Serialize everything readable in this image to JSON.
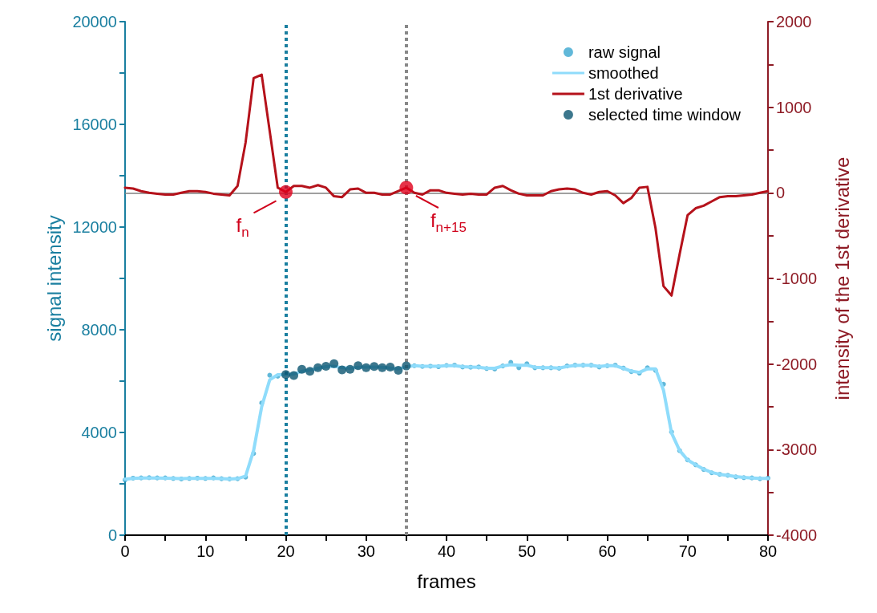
{
  "chart_data": {
    "type": "line",
    "xlabel": "frames",
    "ylabel": "signal intensity",
    "y2label": "intensity of the 1st derivative",
    "x": [
      0,
      1,
      2,
      3,
      4,
      5,
      6,
      7,
      8,
      9,
      10,
      11,
      12,
      13,
      14,
      15,
      16,
      17,
      18,
      19,
      20,
      21,
      22,
      23,
      24,
      25,
      26,
      27,
      28,
      29,
      30,
      31,
      32,
      33,
      34,
      35,
      36,
      37,
      38,
      39,
      40,
      41,
      42,
      43,
      44,
      45,
      46,
      47,
      48,
      49,
      50,
      51,
      52,
      53,
      54,
      55,
      56,
      57,
      58,
      59,
      60,
      61,
      62,
      63,
      64,
      65,
      66,
      67,
      68,
      69,
      70,
      71,
      72,
      73,
      74,
      75,
      76,
      77,
      78,
      79,
      80
    ],
    "series": [
      {
        "name": "raw signal",
        "type": "scatter",
        "marker": "circle",
        "color": "#3aa6d0",
        "values": [
          2150,
          2220,
          2230,
          2240,
          2230,
          2230,
          2210,
          2190,
          2210,
          2220,
          2210,
          2230,
          2200,
          2190,
          2200,
          2260,
          3180,
          5150,
          6230,
          6190,
          null,
          null,
          null,
          null,
          null,
          null,
          null,
          null,
          null,
          null,
          null,
          null,
          null,
          null,
          null,
          null,
          6600,
          6570,
          6580,
          6560,
          6610,
          6620,
          6550,
          6540,
          6550,
          6490,
          6470,
          6590,
          6730,
          6520,
          6680,
          6520,
          6520,
          6520,
          6500,
          6590,
          6620,
          6620,
          6620,
          6550,
          6600,
          6620,
          6510,
          6370,
          6310,
          6520,
          6420,
          5880,
          4020,
          3290,
          2930,
          2740,
          2560,
          2430,
          2370,
          2330,
          2270,
          2240,
          2230,
          2200,
          2220
        ]
      },
      {
        "name": "smoothed",
        "marker": "none",
        "color": "#8fdcfb",
        "values": [
          2180,
          2210,
          2230,
          2230,
          2230,
          2220,
          2210,
          2200,
          2210,
          2210,
          2210,
          2210,
          2200,
          2190,
          2200,
          2300,
          3300,
          5000,
          6050,
          6250,
          6250,
          6280,
          6380,
          6430,
          6500,
          6560,
          6580,
          6520,
          6500,
          6540,
          6550,
          6550,
          6540,
          6510,
          6480,
          6560,
          6600,
          6580,
          6580,
          6580,
          6600,
          6600,
          6560,
          6550,
          6540,
          6500,
          6500,
          6590,
          6640,
          6620,
          6620,
          6540,
          6520,
          6520,
          6510,
          6570,
          6610,
          6620,
          6620,
          6570,
          6600,
          6600,
          6500,
          6390,
          6340,
          6480,
          6480,
          5650,
          3980,
          3300,
          2930,
          2740,
          2570,
          2440,
          2370,
          2330,
          2280,
          2250,
          2230,
          2210,
          2210
        ]
      },
      {
        "name": "1st derivative",
        "marker": "none",
        "axis": "y2",
        "color": "#b5121b",
        "values": [
          60,
          50,
          20,
          0,
          -10,
          -20,
          -20,
          0,
          20,
          20,
          10,
          -10,
          -20,
          -30,
          80,
          590,
          1340,
          1380,
          720,
          60,
          10,
          80,
          80,
          60,
          90,
          60,
          -40,
          -50,
          40,
          50,
          0,
          0,
          -20,
          -20,
          20,
          60,
          0,
          -20,
          30,
          30,
          0,
          -10,
          -20,
          -10,
          -20,
          -20,
          60,
          80,
          30,
          -10,
          -30,
          -30,
          -30,
          20,
          40,
          50,
          40,
          0,
          -20,
          10,
          20,
          -30,
          -120,
          -60,
          60,
          70,
          -410,
          -1090,
          -1200,
          -720,
          -260,
          -180,
          -150,
          -100,
          -50,
          -40,
          -40,
          -30,
          -20,
          0,
          20
        ]
      },
      {
        "name": "selected time window",
        "type": "scatter",
        "marker": "circle",
        "color": "#0b5570",
        "x": [
          20,
          21,
          22,
          23,
          24,
          25,
          26,
          27,
          28,
          29,
          30,
          31,
          32,
          33,
          34,
          35
        ],
        "values": [
          6260,
          6220,
          6460,
          6380,
          6520,
          6580,
          6680,
          6440,
          6460,
          6600,
          6520,
          6570,
          6520,
          6550,
          6420,
          6590
        ]
      },
      {
        "type": "scatter",
        "marker": "circle",
        "axis": "y2",
        "color": "#e0001b",
        "x": [
          20,
          35
        ],
        "values": [
          10,
          60
        ]
      }
    ],
    "xlim": [
      0,
      80
    ],
    "xticks": [
      0,
      {
        "value": 5,
        "label": null
      },
      10,
      {
        "value": 15,
        "label": null
      },
      20,
      {
        "value": 25,
        "label": null
      },
      30,
      {
        "value": 35,
        "label": null
      },
      40,
      {
        "value": 45,
        "label": null
      },
      50,
      {
        "value": 55,
        "label": null
      },
      60,
      {
        "value": 65,
        "label": null
      },
      70,
      {
        "value": 75,
        "label": null
      },
      80
    ],
    "ylim": [
      0,
      20000
    ],
    "yticks": [
      0,
      {
        "value": 2000,
        "label": null
      },
      4000,
      {
        "value": 6000,
        "label": null
      },
      8000,
      {
        "value": 10000,
        "label": null
      },
      12000,
      {
        "value": 14000,
        "label": null
      },
      16000,
      {
        "value": 18000,
        "label": null
      },
      20000
    ],
    "y2lim": [
      -4000,
      2000
    ],
    "y2ticks": [
      -4000,
      {
        "value": -3500,
        "label": null
      },
      -3000,
      {
        "value": -2500,
        "label": null
      },
      -2000,
      {
        "value": -1500,
        "label": null
      },
      -1000,
      {
        "value": -500,
        "label": null
      },
      0,
      {
        "value": 500,
        "label": null
      },
      1000,
      {
        "value": 1500,
        "label": null
      },
      2000
    ],
    "ref_lines": [
      {
        "axis": "x",
        "value": 20,
        "color": "#1a7fa0",
        "line_style": "dotted"
      },
      {
        "axis": "x",
        "value": 35,
        "color": "#888888",
        "line_style": "dotted"
      },
      {
        "axis": "y2",
        "value": 0,
        "color": "#808080",
        "line_style": "solid"
      }
    ],
    "annotations": [
      {
        "text": "f$_{n}$",
        "x": 20,
        "y": 13300
      },
      {
        "text": "f$_{n+15}$",
        "x": 35,
        "y": 13500
      }
    ],
    "legend": "top right",
    "grid": false
  }
}
